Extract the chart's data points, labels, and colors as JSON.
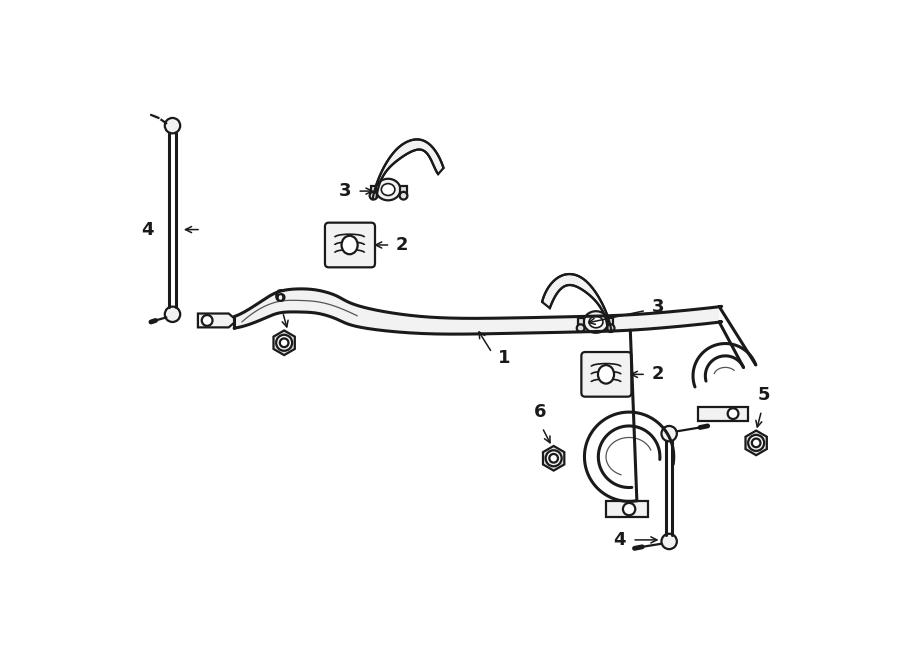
{
  "bg_color": "#ffffff",
  "line_color": "#1a1a1a",
  "fig_width": 9.0,
  "fig_height": 6.62,
  "dpi": 100,
  "lw_bar": 2.2,
  "lw_part": 1.6,
  "lw_thin": 1.2,
  "label_fontsize": 13,
  "label_fontweight": "bold"
}
